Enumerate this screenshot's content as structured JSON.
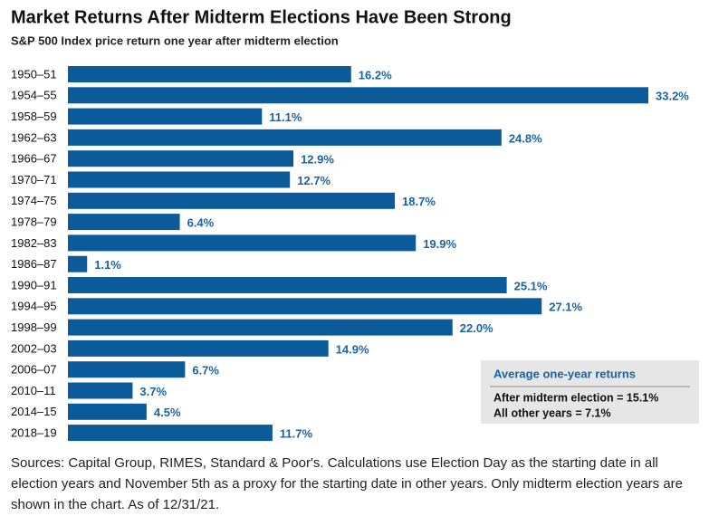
{
  "chart_data": {
    "type": "bar",
    "orientation": "horizontal",
    "title": "Market Returns After Midterm Elections Have Been Strong",
    "subtitle": "S&P 500 Index price return one year after midterm election",
    "categories": [
      "1950–51",
      "1954–55",
      "1958–59",
      "1962–63",
      "1966–67",
      "1970–71",
      "1974–75",
      "1978–79",
      "1982–83",
      "1986–87",
      "1990–91",
      "1994–95",
      "1998–99",
      "2002–03",
      "2006–07",
      "2010–11",
      "2014–15",
      "2018–19"
    ],
    "values": [
      16.2,
      33.2,
      11.1,
      24.8,
      12.9,
      12.7,
      18.7,
      6.4,
      19.9,
      1.1,
      25.1,
      27.1,
      22.0,
      14.9,
      6.7,
      3.7,
      4.5,
      11.7
    ],
    "value_labels": [
      "16.2%",
      "33.2%",
      "11.1%",
      "24.8%",
      "12.9%",
      "12.7%",
      "18.7%",
      "6.4%",
      "19.9%",
      "1.1%",
      "25.1%",
      "27.1%",
      "22.0%",
      "14.9%",
      "6.7%",
      "3.7%",
      "4.5%",
      "11.7%"
    ],
    "color": "#0b5a99",
    "annotation": {
      "title": "Average one-year returns",
      "lines": [
        "After midterm election = 15.1%",
        "All other years = 7.1%"
      ]
    },
    "source": "Sources: Capital Group, RIMES, Standard & Poor's. Calculations use Election Day as the starting date in all election years and November 5th as a proxy for the starting date in other years. Only midterm election years are shown in the chart. As of 12/31/21."
  }
}
